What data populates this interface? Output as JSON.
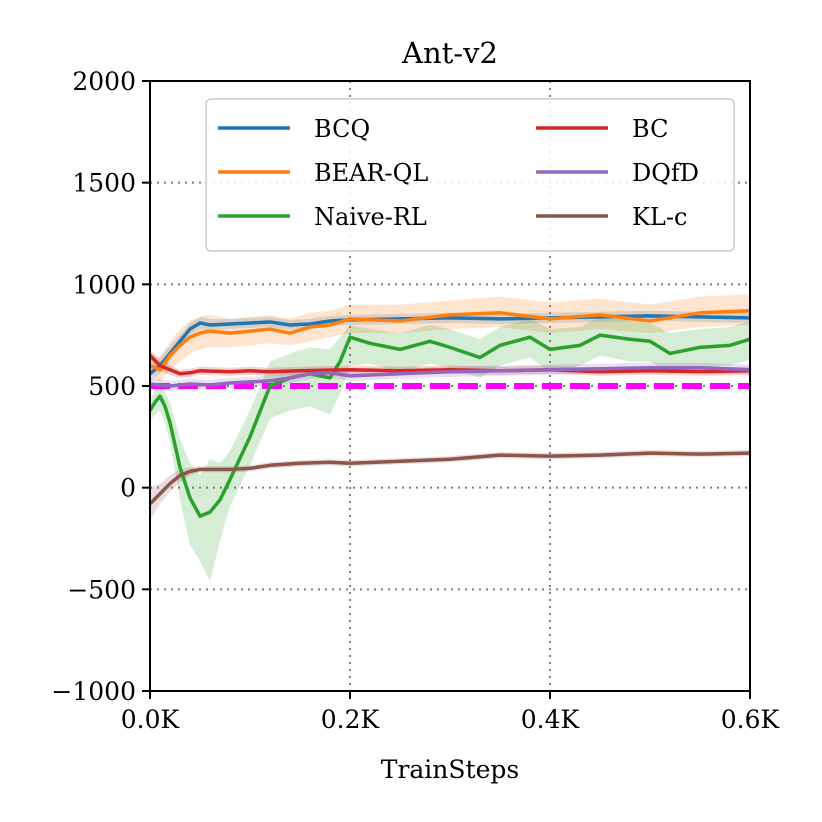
{
  "chart_data": {
    "type": "line",
    "title": "Ant-v2",
    "xlabel": "TrainSteps",
    "ylabel": "",
    "xlim": [
      0,
      0.6
    ],
    "ylim": [
      -1000,
      2000
    ],
    "x_unit": "K",
    "x_ticks": [
      "0.0K",
      "0.2K",
      "0.4K",
      "0.6K"
    ],
    "y_ticks": [
      "2000",
      "1500",
      "1000",
      "500",
      "0",
      "−500",
      "−1000"
    ],
    "grid": true,
    "legend_position": "top",
    "reference_line": {
      "value": 500,
      "color": "#ff00ff",
      "style": "dashed"
    },
    "series": [
      {
        "name": "BCQ",
        "color": "#1f77b4",
        "x": [
          0,
          0.01,
          0.02,
          0.03,
          0.04,
          0.05,
          0.06,
          0.08,
          0.1,
          0.12,
          0.14,
          0.16,
          0.18,
          0.2,
          0.25,
          0.3,
          0.35,
          0.4,
          0.45,
          0.5,
          0.55,
          0.6
        ],
        "y": [
          560,
          600,
          660,
          720,
          780,
          810,
          800,
          805,
          810,
          815,
          800,
          805,
          820,
          825,
          830,
          835,
          830,
          835,
          840,
          845,
          840,
          835
        ],
        "lower": [
          520,
          560,
          620,
          690,
          750,
          780,
          770,
          780,
          785,
          790,
          775,
          780,
          795,
          800,
          805,
          810,
          805,
          810,
          815,
          820,
          815,
          810
        ],
        "upper": [
          600,
          640,
          700,
          750,
          810,
          840,
          830,
          830,
          835,
          840,
          825,
          830,
          845,
          850,
          855,
          860,
          855,
          860,
          865,
          870,
          865,
          860
        ]
      },
      {
        "name": "BEAR-QL",
        "color": "#ff7f0e",
        "x": [
          0,
          0.01,
          0.02,
          0.03,
          0.04,
          0.05,
          0.06,
          0.08,
          0.1,
          0.12,
          0.14,
          0.16,
          0.18,
          0.2,
          0.25,
          0.3,
          0.35,
          0.4,
          0.45,
          0.5,
          0.55,
          0.6
        ],
        "y": [
          600,
          580,
          650,
          700,
          740,
          760,
          770,
          760,
          770,
          780,
          760,
          790,
          800,
          830,
          820,
          850,
          860,
          830,
          850,
          820,
          860,
          870
        ],
        "lower": [
          560,
          520,
          580,
          620,
          660,
          680,
          690,
          690,
          700,
          710,
          700,
          720,
          740,
          760,
          760,
          780,
          790,
          760,
          780,
          760,
          790,
          800
        ],
        "upper": [
          660,
          640,
          720,
          780,
          820,
          840,
          850,
          830,
          840,
          850,
          830,
          860,
          870,
          900,
          900,
          920,
          940,
          910,
          930,
          900,
          940,
          950
        ]
      },
      {
        "name": "Naive-RL",
        "color": "#2ca02c",
        "x": [
          0,
          0.005,
          0.01,
          0.015,
          0.02,
          0.03,
          0.04,
          0.05,
          0.06,
          0.07,
          0.08,
          0.1,
          0.12,
          0.14,
          0.16,
          0.18,
          0.19,
          0.2,
          0.22,
          0.25,
          0.28,
          0.3,
          0.33,
          0.35,
          0.38,
          0.4,
          0.43,
          0.45,
          0.48,
          0.5,
          0.52,
          0.55,
          0.58,
          0.6
        ],
        "y": [
          380,
          420,
          450,
          400,
          320,
          100,
          -50,
          -140,
          -120,
          -60,
          40,
          250,
          500,
          540,
          560,
          540,
          620,
          740,
          710,
          680,
          720,
          690,
          640,
          700,
          740,
          680,
          700,
          750,
          730,
          720,
          660,
          690,
          700,
          730
        ],
        "lower": [
          330,
          360,
          380,
          320,
          220,
          -60,
          -280,
          -360,
          -460,
          -260,
          -90,
          110,
          340,
          380,
          400,
          360,
          460,
          600,
          610,
          570,
          610,
          590,
          540,
          600,
          640,
          570,
          600,
          650,
          620,
          620,
          560,
          590,
          600,
          630
        ],
        "upper": [
          430,
          480,
          510,
          470,
          420,
          240,
          120,
          60,
          140,
          120,
          180,
          380,
          620,
          660,
          690,
          680,
          740,
          800,
          780,
          760,
          800,
          780,
          730,
          790,
          830,
          780,
          790,
          840,
          820,
          810,
          760,
          780,
          790,
          820
        ]
      },
      {
        "name": "BC",
        "color": "#d62728",
        "x": [
          0,
          0.01,
          0.02,
          0.03,
          0.04,
          0.05,
          0.08,
          0.1,
          0.12,
          0.15,
          0.2,
          0.25,
          0.3,
          0.35,
          0.4,
          0.45,
          0.5,
          0.55,
          0.6
        ],
        "y": [
          650,
          600,
          580,
          560,
          565,
          575,
          570,
          575,
          570,
          575,
          580,
          575,
          580,
          575,
          580,
          570,
          575,
          570,
          575
        ],
        "lower": [
          620,
          575,
          555,
          540,
          545,
          555,
          550,
          555,
          550,
          555,
          560,
          555,
          560,
          555,
          560,
          550,
          555,
          550,
          555
        ],
        "upper": [
          680,
          625,
          605,
          580,
          585,
          595,
          590,
          595,
          590,
          595,
          600,
          595,
          600,
          595,
          600,
          590,
          595,
          590,
          595
        ]
      },
      {
        "name": "DQfD",
        "color": "#9467bd",
        "x": [
          0,
          0.02,
          0.04,
          0.06,
          0.08,
          0.1,
          0.12,
          0.14,
          0.16,
          0.18,
          0.2,
          0.25,
          0.3,
          0.35,
          0.4,
          0.45,
          0.5,
          0.55,
          0.6
        ],
        "y": [
          510,
          500,
          510,
          505,
          515,
          520,
          525,
          540,
          560,
          565,
          550,
          560,
          570,
          575,
          580,
          585,
          590,
          590,
          580
        ],
        "lower": [
          480,
          475,
          485,
          480,
          490,
          495,
          500,
          515,
          535,
          540,
          525,
          535,
          545,
          550,
          555,
          560,
          565,
          565,
          555
        ],
        "upper": [
          540,
          525,
          535,
          530,
          540,
          545,
          550,
          565,
          585,
          590,
          575,
          585,
          595,
          600,
          605,
          610,
          615,
          615,
          605
        ]
      },
      {
        "name": "KL-c",
        "color": "#8c564b",
        "x": [
          0,
          0.01,
          0.02,
          0.03,
          0.04,
          0.05,
          0.06,
          0.08,
          0.1,
          0.12,
          0.15,
          0.18,
          0.2,
          0.25,
          0.3,
          0.35,
          0.4,
          0.45,
          0.5,
          0.55,
          0.6
        ],
        "y": [
          -80,
          -30,
          20,
          60,
          80,
          90,
          90,
          90,
          95,
          110,
          120,
          125,
          120,
          130,
          140,
          160,
          155,
          160,
          170,
          165,
          170
        ],
        "lower": [
          -160,
          -80,
          -20,
          30,
          60,
          75,
          75,
          75,
          80,
          95,
          105,
          110,
          105,
          115,
          125,
          145,
          140,
          145,
          155,
          150,
          155
        ],
        "upper": [
          0,
          20,
          60,
          90,
          100,
          105,
          105,
          105,
          110,
          125,
          135,
          140,
          135,
          145,
          155,
          175,
          170,
          175,
          185,
          180,
          185
        ]
      }
    ]
  }
}
